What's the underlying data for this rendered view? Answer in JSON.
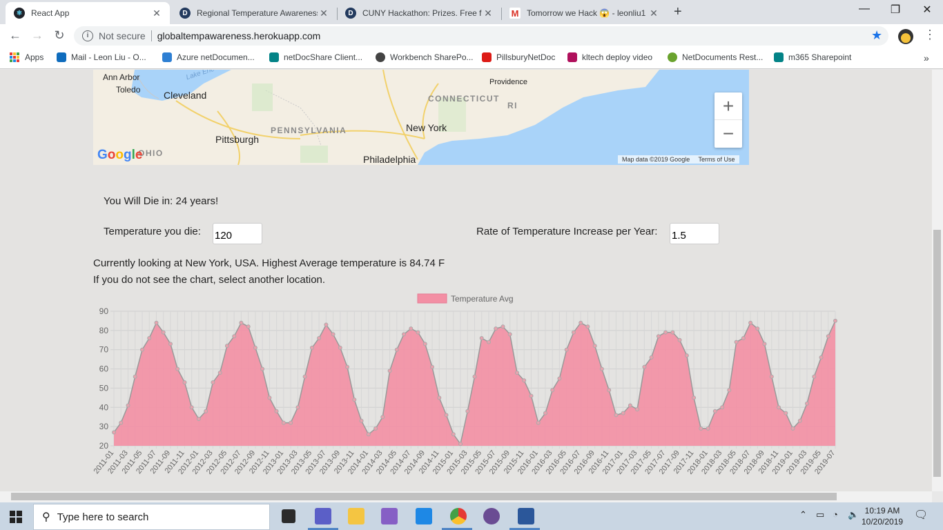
{
  "browser": {
    "tabs": [
      {
        "title": "React App",
        "close": "✕",
        "active": true
      },
      {
        "title": "Regional Temperature Awareness",
        "close": "✕",
        "active": false
      },
      {
        "title": "CUNY Hackathon: Prizes. Free food",
        "close": "✕",
        "active": false
      },
      {
        "title": "Tomorrow we Hack 😱 - leonliu1",
        "close": "✕",
        "active": false
      }
    ],
    "new_tab": "+",
    "window_controls": {
      "minimize": "—",
      "restore": "❐",
      "close": "✕"
    },
    "security_label": "Not secure",
    "url": "globaltempawareness.herokuapp.com",
    "bookmarks": [
      {
        "label": "Apps",
        "color": "#e53935"
      },
      {
        "label": "Mail - Leon Liu - O...",
        "color": "#0f6cbd"
      },
      {
        "label": "Azure netDocumen...",
        "color": "#2d7fd3"
      },
      {
        "label": "netDocShare Client...",
        "color": "#038387"
      },
      {
        "label": "Workbench SharePo...",
        "color": "#444444"
      },
      {
        "label": "PillsburyNetDoc",
        "color": "#dd1b16"
      },
      {
        "label": "kltech deploy video",
        "color": "#b0105c"
      },
      {
        "label": "NetDocuments Rest...",
        "color": "#6aa32e"
      },
      {
        "label": "m365 Sharepoint",
        "color": "#038387"
      }
    ],
    "bookmarks_more": "»"
  },
  "map": {
    "labels": {
      "ann_arbor": "Ann Arbor",
      "toledo": "Toledo",
      "lake_erie": "Lake Erie",
      "cleveland": "Cleveland",
      "pittsburgh": "Pittsburgh",
      "new_york": "New York",
      "philadelphia": "Philadelphia",
      "providence": "Providence",
      "ohio": "OHIO",
      "pennsylvania": "PENNSYLVANIA",
      "connecticut": "CONNECTICUT",
      "ri": "RI"
    },
    "zoom_in": "+",
    "zoom_out": "−",
    "attribution": "Map data ©2019 Google",
    "terms": "Terms of Use",
    "logo": "Google"
  },
  "info": {
    "die_text": "You Will Die in: 24 years!",
    "temp_label": "Temperature you die:",
    "temp_value": "120",
    "rate_label": "Rate of Temperature Increase per Year:",
    "rate_value": "1.5",
    "location_text": "Currently looking at New York, USA. Highest Average temperature is 84.74 F",
    "hint_text": "If you do not see the chart, select another location."
  },
  "chart_data": {
    "type": "area",
    "series": [
      {
        "name": "Temperature Avg",
        "color": "#f38fa4",
        "values": [
          27,
          32,
          41,
          56,
          70,
          76,
          84,
          79,
          73,
          60,
          53,
          40,
          34,
          38,
          53,
          58,
          72,
          77,
          84,
          82,
          71,
          60,
          45,
          38,
          32,
          32,
          40,
          56,
          71,
          76,
          83,
          78,
          71,
          61,
          44,
          33,
          26,
          29,
          35,
          59,
          70,
          78,
          81,
          79,
          73,
          61,
          45,
          36,
          26,
          21,
          38,
          56,
          76,
          74,
          81,
          82,
          78,
          58,
          54,
          46,
          32,
          37,
          49,
          55,
          70,
          79,
          84,
          82,
          72,
          60,
          49,
          36,
          37,
          41,
          39,
          61,
          66,
          77,
          79,
          79,
          75,
          67,
          45,
          29,
          29,
          38,
          40,
          49,
          74,
          76,
          84,
          81,
          73,
          56,
          40,
          37,
          29,
          33,
          42,
          56,
          66,
          77,
          85
        ]
      }
    ],
    "x_start": "2011-01",
    "x_end": "2019-07",
    "x_ticks": [
      "2011-01",
      "2011-03",
      "2011-05",
      "2011-07",
      "2011-09",
      "2011-11",
      "2012-01",
      "2012-03",
      "2012-05",
      "2012-07",
      "2012-09",
      "2012-11",
      "2013-01",
      "2013-03",
      "2013-05",
      "2013-07",
      "2013-09",
      "2013-11",
      "2014-01",
      "2014-03",
      "2014-05",
      "2014-07",
      "2014-09",
      "2014-11",
      "2015-01",
      "2015-03",
      "2015-05",
      "2015-07",
      "2015-09",
      "2015-11",
      "2016-01",
      "2016-03",
      "2016-05",
      "2016-07",
      "2016-09",
      "2016-11",
      "2017-01",
      "2017-03",
      "2017-05",
      "2017-07",
      "2017-09",
      "2017-11",
      "2018-01",
      "2018-03",
      "2018-05",
      "2018-07",
      "2018-09",
      "2018-11",
      "2019-01",
      "2019-03",
      "2019-05",
      "2019-07"
    ],
    "y_ticks": [
      "90",
      "80",
      "70",
      "60",
      "50",
      "40",
      "30",
      "20"
    ],
    "ylim": [
      20,
      90
    ],
    "grid": true,
    "legend": "top-center"
  },
  "taskbar": {
    "search_placeholder": "Type here to search",
    "time": "10:19 AM",
    "date": "10/20/2019",
    "icons": [
      {
        "name": "task-view-icon",
        "color": "#2b2b2b"
      },
      {
        "name": "teams-icon",
        "color": "#5b5fc7"
      },
      {
        "name": "file-explorer-icon",
        "color": "#f4c542"
      },
      {
        "name": "visual-studio-icon",
        "color": "#865fc5"
      },
      {
        "name": "vscode-icon",
        "color": "#1e88e5"
      },
      {
        "name": "chrome-icon",
        "color": "#e53935"
      },
      {
        "name": "app-circle-icon",
        "color": "#6a4c93"
      },
      {
        "name": "word-icon",
        "color": "#2b579a"
      }
    ]
  }
}
